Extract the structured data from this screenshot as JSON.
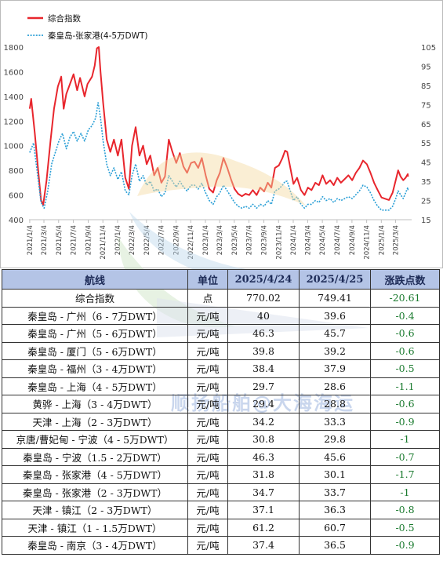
{
  "chart_data": {
    "type": "line",
    "series": [
      {
        "name": "综合指数",
        "axis": "left",
        "color": "#e8262d",
        "points": [
          [
            "2021-01-04",
            1300
          ],
          [
            "2021-01-10",
            1380
          ],
          [
            "2021-01-25",
            1100
          ],
          [
            "2021-02-08",
            800
          ],
          [
            "2021-02-20",
            560
          ],
          [
            "2021-03-01",
            520
          ],
          [
            "2021-03-15",
            720
          ],
          [
            "2021-04-01",
            1050
          ],
          [
            "2021-04-15",
            1300
          ],
          [
            "2021-05-01",
            1480
          ],
          [
            "2021-05-15",
            1560
          ],
          [
            "2021-05-25",
            1300
          ],
          [
            "2021-06-05",
            1420
          ],
          [
            "2021-06-20",
            1500
          ],
          [
            "2021-07-05",
            1580
          ],
          [
            "2021-07-20",
            1450
          ],
          [
            "2021-08-01",
            1550
          ],
          [
            "2021-08-20",
            1400
          ],
          [
            "2021-09-01",
            1500
          ],
          [
            "2021-09-20",
            1560
          ],
          [
            "2021-10-01",
            1650
          ],
          [
            "2021-10-10",
            1790
          ],
          [
            "2021-10-18",
            1800
          ],
          [
            "2021-10-25",
            1600
          ],
          [
            "2021-11-05",
            1350
          ],
          [
            "2021-11-20",
            1050
          ],
          [
            "2021-12-05",
            950
          ],
          [
            "2021-12-20",
            1050
          ],
          [
            "2022-01-05",
            920
          ],
          [
            "2022-01-20",
            1050
          ],
          [
            "2022-02-05",
            740
          ],
          [
            "2022-02-20",
            650
          ],
          [
            "2022-03-05",
            1000
          ],
          [
            "2022-03-20",
            1150
          ],
          [
            "2022-04-05",
            920
          ],
          [
            "2022-04-20",
            1000
          ],
          [
            "2022-05-05",
            850
          ],
          [
            "2022-05-20",
            920
          ],
          [
            "2022-06-05",
            760
          ],
          [
            "2022-06-20",
            820
          ],
          [
            "2022-07-05",
            700
          ],
          [
            "2022-07-20",
            750
          ],
          [
            "2022-08-05",
            1050
          ],
          [
            "2022-08-20",
            950
          ],
          [
            "2022-09-05",
            860
          ],
          [
            "2022-09-20",
            940
          ],
          [
            "2022-10-05",
            830
          ],
          [
            "2022-10-20",
            780
          ],
          [
            "2022-11-05",
            860
          ],
          [
            "2022-11-20",
            870
          ],
          [
            "2022-12-05",
            820
          ],
          [
            "2022-12-20",
            900
          ],
          [
            "2023-01-05",
            760
          ],
          [
            "2023-01-20",
            650
          ],
          [
            "2023-02-05",
            620
          ],
          [
            "2023-02-20",
            720
          ],
          [
            "2023-03-05",
            780
          ],
          [
            "2023-03-20",
            900
          ],
          [
            "2023-04-05",
            820
          ],
          [
            "2023-04-20",
            730
          ],
          [
            "2023-05-05",
            650
          ],
          [
            "2023-05-20",
            610
          ],
          [
            "2023-06-05",
            590
          ],
          [
            "2023-06-20",
            610
          ],
          [
            "2023-07-05",
            600
          ],
          [
            "2023-07-20",
            640
          ],
          [
            "2023-08-05",
            600
          ],
          [
            "2023-08-20",
            660
          ],
          [
            "2023-09-05",
            630
          ],
          [
            "2023-09-20",
            700
          ],
          [
            "2023-10-05",
            660
          ],
          [
            "2023-10-20",
            820
          ],
          [
            "2023-11-05",
            840
          ],
          [
            "2023-11-20",
            900
          ],
          [
            "2023-12-01",
            960
          ],
          [
            "2023-12-10",
            950
          ],
          [
            "2023-12-20",
            850
          ],
          [
            "2024-01-05",
            690
          ],
          [
            "2024-01-20",
            740
          ],
          [
            "2024-02-05",
            640
          ],
          [
            "2024-02-20",
            600
          ],
          [
            "2024-03-05",
            660
          ],
          [
            "2024-03-20",
            640
          ],
          [
            "2024-04-05",
            700
          ],
          [
            "2024-04-20",
            680
          ],
          [
            "2024-05-05",
            760
          ],
          [
            "2024-05-20",
            690
          ],
          [
            "2024-06-05",
            720
          ],
          [
            "2024-06-20",
            680
          ],
          [
            "2024-07-05",
            740
          ],
          [
            "2024-07-20",
            700
          ],
          [
            "2024-08-05",
            730
          ],
          [
            "2024-08-20",
            760
          ],
          [
            "2024-09-05",
            720
          ],
          [
            "2024-09-20",
            780
          ],
          [
            "2024-10-05",
            820
          ],
          [
            "2024-10-20",
            880
          ],
          [
            "2024-11-05",
            850
          ],
          [
            "2024-11-20",
            780
          ],
          [
            "2024-12-05",
            700
          ],
          [
            "2024-12-20",
            640
          ],
          [
            "2025-01-05",
            580
          ],
          [
            "2025-01-20",
            570
          ],
          [
            "2025-02-05",
            560
          ],
          [
            "2025-02-20",
            620
          ],
          [
            "2025-03-05",
            720
          ],
          [
            "2025-03-15",
            800
          ],
          [
            "2025-03-25",
            750
          ],
          [
            "2025-04-05",
            720
          ],
          [
            "2025-04-15",
            740
          ],
          [
            "2025-04-24",
            770
          ],
          [
            "2025-04-25",
            749
          ]
        ]
      },
      {
        "name": "秦皇岛-张家港(4-5万DWT)",
        "axis": "right",
        "color": "#2a9fd6",
        "points": [
          [
            "2021-01-04",
            50
          ],
          [
            "2021-01-20",
            55
          ],
          [
            "2021-02-08",
            36
          ],
          [
            "2021-02-20",
            24
          ],
          [
            "2021-03-05",
            21
          ],
          [
            "2021-03-20",
            30
          ],
          [
            "2021-04-05",
            44
          ],
          [
            "2021-04-20",
            50
          ],
          [
            "2021-05-05",
            56
          ],
          [
            "2021-05-20",
            60
          ],
          [
            "2021-06-05",
            52
          ],
          [
            "2021-06-20",
            58
          ],
          [
            "2021-07-05",
            61
          ],
          [
            "2021-07-20",
            56
          ],
          [
            "2021-08-05",
            60
          ],
          [
            "2021-08-20",
            56
          ],
          [
            "2021-09-05",
            62
          ],
          [
            "2021-09-20",
            64
          ],
          [
            "2021-10-05",
            68
          ],
          [
            "2021-10-15",
            76
          ],
          [
            "2021-10-25",
            68
          ],
          [
            "2021-11-05",
            56
          ],
          [
            "2021-11-20",
            44
          ],
          [
            "2021-12-05",
            38
          ],
          [
            "2021-12-20",
            42
          ],
          [
            "2022-01-05",
            36
          ],
          [
            "2022-01-20",
            40
          ],
          [
            "2022-02-05",
            30
          ],
          [
            "2022-02-20",
            28
          ],
          [
            "2022-03-05",
            38
          ],
          [
            "2022-03-20",
            44
          ],
          [
            "2022-04-05",
            35
          ],
          [
            "2022-04-20",
            38
          ],
          [
            "2022-05-05",
            33
          ],
          [
            "2022-05-20",
            35
          ],
          [
            "2022-06-05",
            30
          ],
          [
            "2022-06-20",
            31
          ],
          [
            "2022-07-05",
            27
          ],
          [
            "2022-07-20",
            29
          ],
          [
            "2022-08-05",
            38
          ],
          [
            "2022-08-20",
            35
          ],
          [
            "2022-09-05",
            32
          ],
          [
            "2022-09-20",
            35
          ],
          [
            "2022-10-05",
            32
          ],
          [
            "2022-10-20",
            30
          ],
          [
            "2022-11-05",
            33
          ],
          [
            "2022-11-20",
            33
          ],
          [
            "2022-12-05",
            31
          ],
          [
            "2022-12-20",
            34
          ],
          [
            "2023-01-05",
            29
          ],
          [
            "2023-01-20",
            25
          ],
          [
            "2023-02-05",
            23
          ],
          [
            "2023-02-20",
            27
          ],
          [
            "2023-03-05",
            29
          ],
          [
            "2023-03-20",
            33
          ],
          [
            "2023-04-05",
            30
          ],
          [
            "2023-04-20",
            27
          ],
          [
            "2023-05-05",
            24
          ],
          [
            "2023-05-20",
            22
          ],
          [
            "2023-06-05",
            21
          ],
          [
            "2023-06-20",
            22
          ],
          [
            "2023-07-05",
            21
          ],
          [
            "2023-07-20",
            23
          ],
          [
            "2023-08-05",
            21
          ],
          [
            "2023-08-20",
            23
          ],
          [
            "2023-09-05",
            22
          ],
          [
            "2023-09-20",
            25
          ],
          [
            "2023-10-05",
            23
          ],
          [
            "2023-10-20",
            30
          ],
          [
            "2023-11-05",
            31
          ],
          [
            "2023-11-20",
            33
          ],
          [
            "2023-12-01",
            35
          ],
          [
            "2023-12-10",
            35
          ],
          [
            "2023-12-20",
            31
          ],
          [
            "2024-01-05",
            25
          ],
          [
            "2024-01-20",
            27
          ],
          [
            "2024-02-05",
            23
          ],
          [
            "2024-02-20",
            21
          ],
          [
            "2024-03-05",
            23
          ],
          [
            "2024-03-20",
            23
          ],
          [
            "2024-04-05",
            25
          ],
          [
            "2024-04-20",
            24
          ],
          [
            "2024-05-05",
            27
          ],
          [
            "2024-05-20",
            25
          ],
          [
            "2024-06-05",
            26
          ],
          [
            "2024-06-20",
            24
          ],
          [
            "2024-07-05",
            26
          ],
          [
            "2024-07-20",
            25
          ],
          [
            "2024-08-05",
            26
          ],
          [
            "2024-08-20",
            27
          ],
          [
            "2024-09-05",
            26
          ],
          [
            "2024-09-20",
            28
          ],
          [
            "2024-10-05",
            30
          ],
          [
            "2024-10-20",
            33
          ],
          [
            "2024-11-05",
            32
          ],
          [
            "2024-11-20",
            29
          ],
          [
            "2024-12-05",
            25
          ],
          [
            "2024-12-20",
            22
          ],
          [
            "2025-01-05",
            20
          ],
          [
            "2025-01-20",
            20
          ],
          [
            "2025-02-05",
            20
          ],
          [
            "2025-02-20",
            22
          ],
          [
            "2025-03-05",
            26
          ],
          [
            "2025-03-15",
            30
          ],
          [
            "2025-03-25",
            28
          ],
          [
            "2025-04-05",
            26
          ],
          [
            "2025-04-15",
            29
          ],
          [
            "2025-04-24",
            31.8
          ],
          [
            "2025-04-25",
            30.1
          ]
        ]
      }
    ],
    "y_left": {
      "min": 400,
      "max": 1800,
      "ticks": [
        400,
        600,
        800,
        1000,
        1200,
        1400,
        1600,
        1800
      ]
    },
    "y_right": {
      "min": 15,
      "max": 105,
      "ticks": [
        15,
        25,
        35,
        45,
        55,
        65,
        75,
        85,
        95,
        105
      ]
    },
    "x_ticks": [
      "2021/1/4",
      "2021/3/4",
      "2021/5/4",
      "2021/7/4",
      "2021/9/4",
      "2021/11/4",
      "2022/1/4",
      "2022/3/4",
      "2022/5/4",
      "2022/7/4",
      "2022/9/4",
      "2022/11/4",
      "2023/1/4",
      "2023/3/4",
      "2023/5/4",
      "2023/7/4",
      "2023/9/4",
      "2023/11/4",
      "2024/1/4",
      "2024/3/4",
      "2024/5/4",
      "2024/7/4",
      "2024/9/4",
      "2024/11/4",
      "2025/1/4",
      "2025/3/4"
    ],
    "x_range": [
      "2021-01-01",
      "2025-05-10"
    ],
    "legend": "top-left",
    "grid": false
  },
  "table": {
    "headers": [
      "航线",
      "单位",
      "2025/4/24",
      "2025/4/25",
      "涨跌点数"
    ],
    "rows": [
      [
        "综合指数",
        "点",
        "770.02",
        "749.41",
        "-20.61"
      ],
      [
        "秦皇岛 - 广州（6 - 7万DWT）",
        "元/吨",
        "40",
        "39.6",
        "-0.4"
      ],
      [
        "秦皇岛 - 广州（5 - 6万DWT）",
        "元/吨",
        "46.3",
        "45.7",
        "-0.6"
      ],
      [
        "秦皇岛 - 厦门（5 - 6万DWT）",
        "元/吨",
        "39.8",
        "39.2",
        "-0.6"
      ],
      [
        "秦皇岛 - 福州（3 - 4万DWT）",
        "元/吨",
        "38.4",
        "37.9",
        "-0.5"
      ],
      [
        "秦皇岛 - 上海（4 - 5万DWT）",
        "元/吨",
        "29.7",
        "28.6",
        "-1.1"
      ],
      [
        "黄骅 - 上海（3 - 4万DWT）",
        "元/吨",
        "29.4",
        "28.8",
        "-0.6"
      ],
      [
        "天津 - 上海（2 - 3万DWT）",
        "元/吨",
        "34.2",
        "33.3",
        "-0.9"
      ],
      [
        "京唐/曹妃甸 - 宁波（4 - 5万DWT）",
        "元/吨",
        "30.8",
        "29.8",
        "-1"
      ],
      [
        "秦皇岛 - 宁波（1.5 - 2万DWT）",
        "元/吨",
        "46.3",
        "45.6",
        "-0.7"
      ],
      [
        "秦皇岛 - 张家港（4 - 5万DWT）",
        "元/吨",
        "31.8",
        "30.1",
        "-1.7"
      ],
      [
        "秦皇岛 - 张家港（2 - 3万DWT）",
        "元/吨",
        "34.7",
        "33.7",
        "-1"
      ],
      [
        "天津 - 镇江（2 - 3万DWT）",
        "元/吨",
        "37.1",
        "36.3",
        "-0.8"
      ],
      [
        "天津 - 镇江（1 - 1.5万DWT）",
        "元/吨",
        "61.2",
        "60.7",
        "-0.5"
      ],
      [
        "秦皇岛 - 南京（3 - 4万DWT）",
        "元/吨",
        "37.4",
        "36.5",
        "-0.9"
      ]
    ]
  },
  "watermark": "顺扬船舶@大海海运",
  "colors": {
    "header_bg": "#b4c4e6",
    "change_text": "#1a7a2e"
  }
}
